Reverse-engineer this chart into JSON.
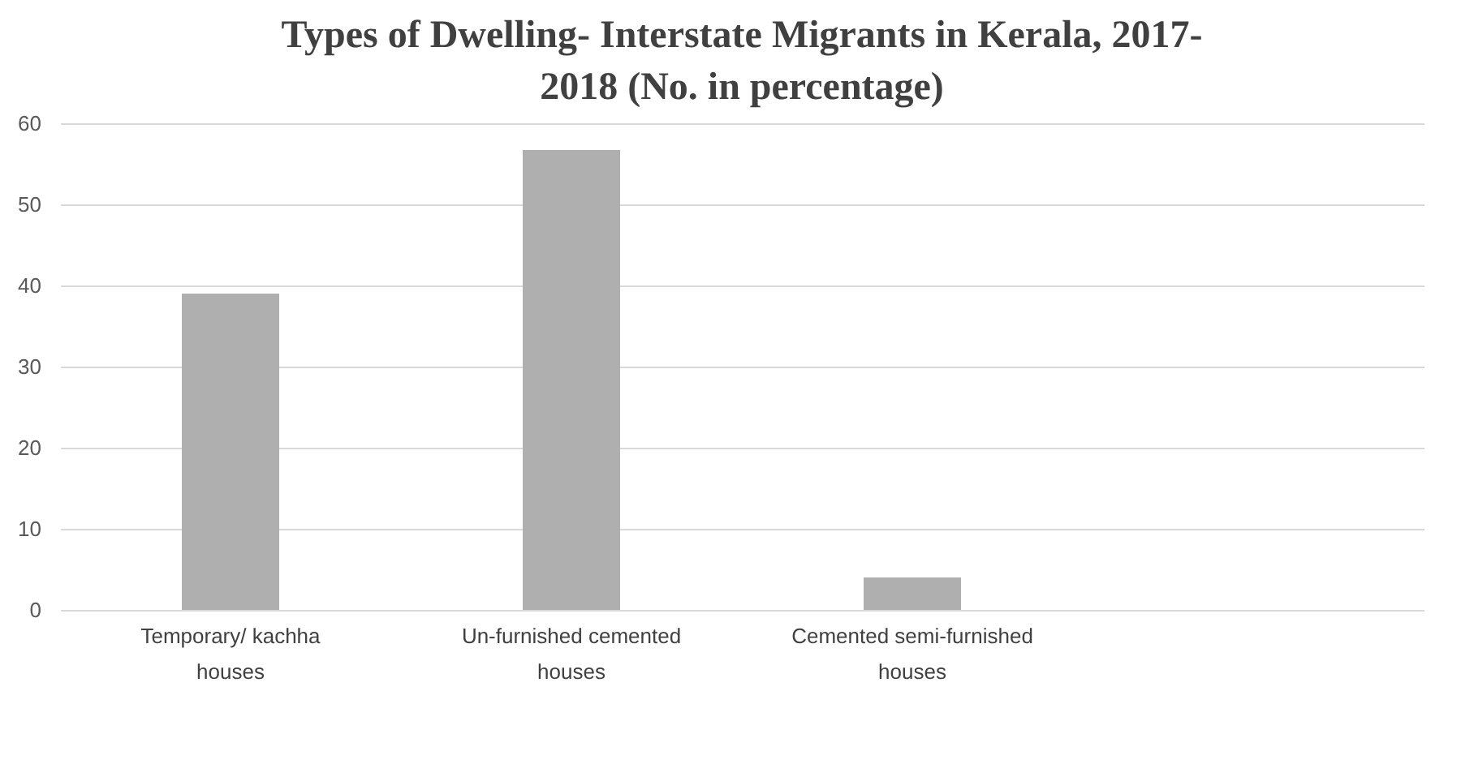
{
  "chart_data": {
    "type": "bar",
    "title": "Types of Dwelling- Interstate Migrants in Kerala, 2017-2018 (No. in percentage)",
    "categories": [
      "Temporary/ kachha houses",
      "Un-furnished cemented houses",
      "Cemented semi-furnished houses",
      null
    ],
    "values": [
      39,
      56.7,
      4.0,
      null
    ],
    "color": "#afafaf",
    "ylim": [
      0,
      60
    ],
    "yticks": [
      0,
      10,
      20,
      30,
      40,
      50,
      60
    ],
    "grid": "y"
  }
}
